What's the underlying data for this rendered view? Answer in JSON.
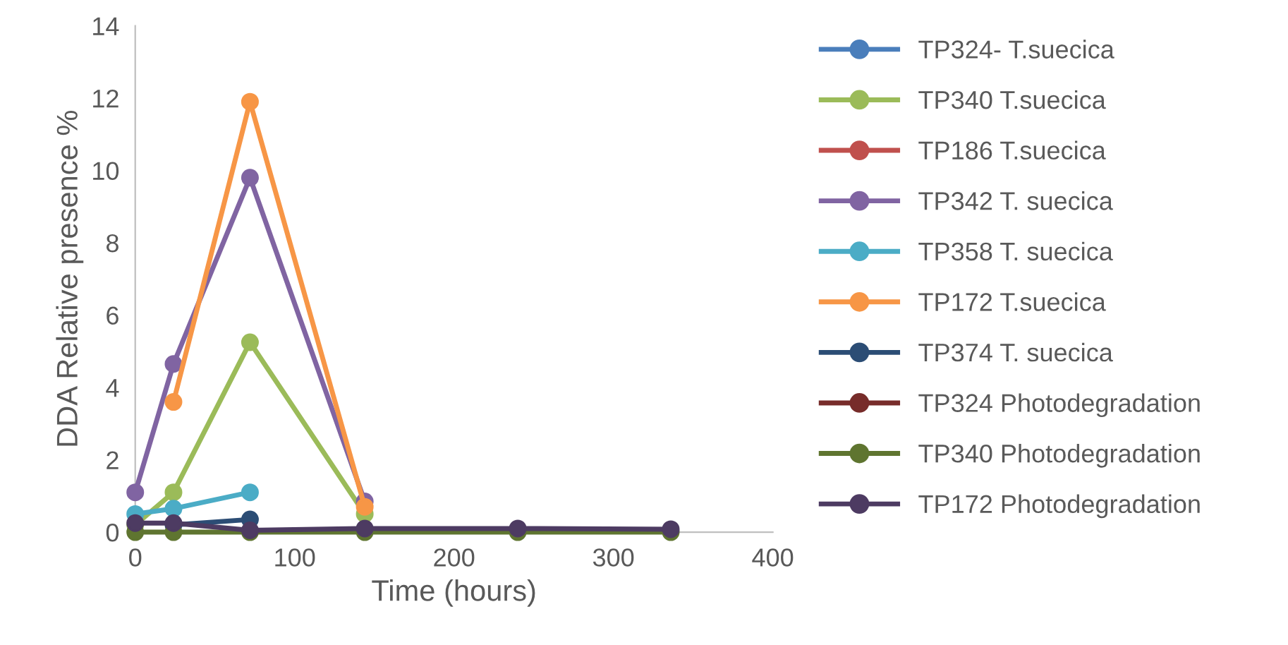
{
  "chart_data": {
    "type": "line",
    "xlabel": "Time (hours)",
    "ylabel": "DDA Relative presence %",
    "xlim": [
      0,
      400
    ],
    "xticks": [
      0,
      100,
      200,
      300,
      400
    ],
    "ylim": [
      0,
      14
    ],
    "yticks": [
      0,
      2,
      4,
      6,
      8,
      10,
      12,
      14
    ],
    "grid": false,
    "legend": "right",
    "marker": "circle",
    "line_style": "solid",
    "series": [
      {
        "name": "TP324- T.suecica",
        "color": "#4a7ebb"
      },
      {
        "name": "TP340 T.suecica",
        "color": "#9bbb59",
        "x": [
          0,
          24,
          72,
          144
        ],
        "values": [
          0.2,
          1.1,
          5.25,
          0.5
        ]
      },
      {
        "name": "TP186 T.suecica",
        "color": "#c0504d"
      },
      {
        "name": "TP342 T. suecica",
        "color": "#8064a2",
        "x": [
          0,
          24,
          72,
          144
        ],
        "values": [
          1.1,
          4.65,
          9.8,
          0.85
        ]
      },
      {
        "name": "TP358 T. suecica",
        "color": "#4bacc6",
        "x": [
          0,
          24,
          72
        ],
        "values": [
          0.5,
          0.65,
          1.1
        ]
      },
      {
        "name": "TP172 T.suecica",
        "color": "#f79646",
        "x": [
          24,
          72,
          144
        ],
        "values": [
          3.6,
          11.9,
          0.7
        ]
      },
      {
        "name": "TP374 T. suecica",
        "color": "#2c4d75",
        "x": [
          24,
          72
        ],
        "values": [
          0.2,
          0.35
        ]
      },
      {
        "name": "TP324 Photodegradation",
        "color": "#772c2a"
      },
      {
        "name": "TP340 Photodegradation",
        "color": "#5f7530",
        "x": [
          0,
          24,
          72,
          144,
          240,
          336
        ],
        "values": [
          0,
          0,
          0,
          0,
          0,
          0
        ]
      },
      {
        "name": "TP172 Photodegradation",
        "color": "#4d3b62",
        "x": [
          0,
          24,
          72,
          144,
          240,
          336
        ],
        "values": [
          0.25,
          0.25,
          0.05,
          0.1,
          0.1,
          0.08
        ]
      }
    ]
  }
}
